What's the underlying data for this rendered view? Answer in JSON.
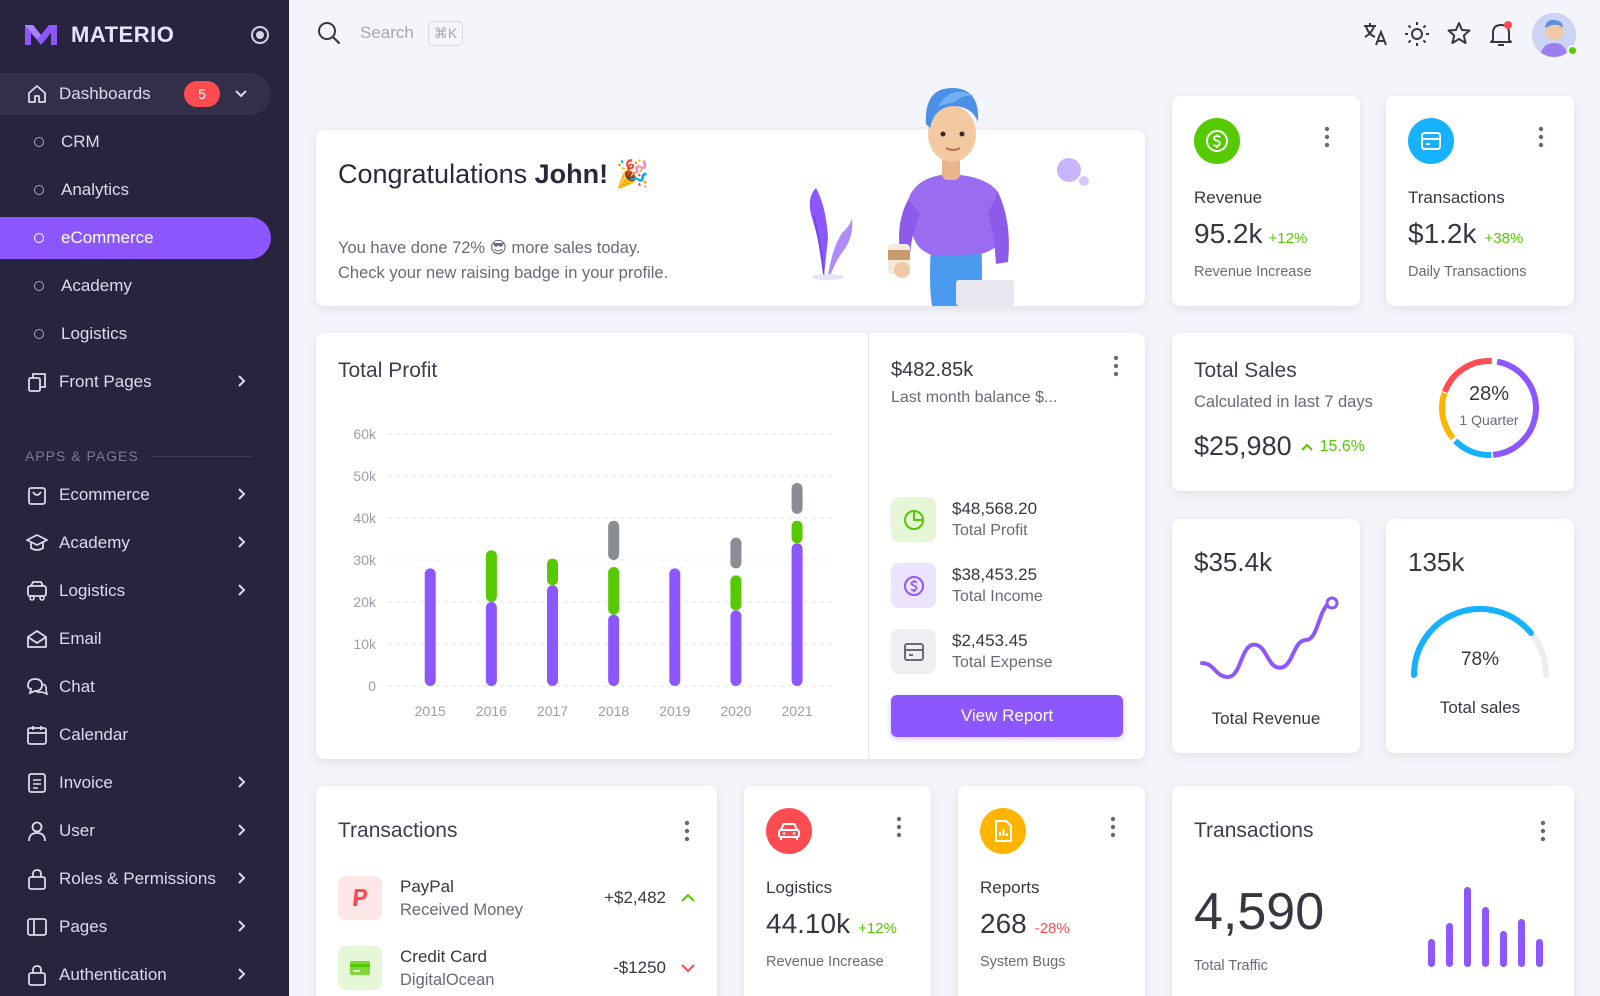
{
  "brand": {
    "name": "MATERIO",
    "color": "#8c57ff"
  },
  "sidebar": {
    "dashboards": {
      "label": "Dashboards",
      "badge": "5"
    },
    "sub_items": [
      "CRM",
      "Analytics",
      "eCommerce",
      "Academy",
      "Logistics"
    ],
    "active_item": "eCommerce",
    "front_pages": "Front Pages",
    "section_header": "APPS & PAGES",
    "items": [
      {
        "label": "Ecommerce",
        "icon": "shopping-bag-icon"
      },
      {
        "label": "Academy",
        "icon": "graduation-cap-icon"
      },
      {
        "label": "Logistics",
        "icon": "truck-icon"
      },
      {
        "label": "Email",
        "icon": "mail-icon"
      },
      {
        "label": "Chat",
        "icon": "chat-icon"
      },
      {
        "label": "Calendar",
        "icon": "calendar-icon"
      },
      {
        "label": "Invoice",
        "icon": "invoice-icon"
      },
      {
        "label": "User",
        "icon": "user-icon"
      },
      {
        "label": "Roles & Permissions",
        "icon": "lock-icon"
      },
      {
        "label": "Pages",
        "icon": "layout-icon"
      },
      {
        "label": "Authentication",
        "icon": "lock-icon"
      }
    ]
  },
  "search": {
    "placeholder": "Search",
    "shortcut": "⌘K"
  },
  "congrats": {
    "title_prefix": "Congratulations ",
    "title_name": "John!",
    "title_emoji": "🎉",
    "line1_before": "You have done 72% ",
    "line1_emoji": "😎",
    "line1_after": " more sales today.",
    "line2": "Check your new raising badge in your profile."
  },
  "revenue_card": {
    "label": "Revenue",
    "value": "95.2k",
    "change": "+12%",
    "subtitle": "Revenue Increase",
    "icon": "dollar-icon",
    "color": "#56ca00"
  },
  "transactions_card": {
    "label": "Transactions",
    "value": "$1.2k",
    "change": "+38%",
    "subtitle": "Daily Transactions",
    "icon": "credit-card-icon",
    "color": "#16b1ff"
  },
  "total_profit": {
    "title": "Total Profit",
    "balance": "$482.85k",
    "balance_sub": "Last month balance $...",
    "stats": [
      {
        "value": "$48,568.20",
        "label": "Total Profit",
        "icon": "pie-chart-icon",
        "color": "#56ca00"
      },
      {
        "value": "$38,453.25",
        "label": "Total Income",
        "icon": "dollar-icon",
        "color": "#8c57ff"
      },
      {
        "value": "$2,453.45",
        "label": "Total Expense",
        "icon": "credit-card-icon",
        "color": "#6d6777"
      }
    ],
    "button": "View Report"
  },
  "chart_data": {
    "type": "bar",
    "stacked": true,
    "categories": [
      "2015",
      "2016",
      "2017",
      "2018",
      "2019",
      "2020",
      "2021"
    ],
    "series": [
      {
        "values": [
          28,
          20,
          24,
          17,
          28,
          18,
          34
        ],
        "color": "#8c57ff"
      },
      {
        "values": [
          0,
          14,
          8,
          13,
          0,
          10,
          7
        ],
        "color": "#56ca00"
      },
      {
        "values": [
          0,
          0,
          0,
          11,
          0,
          9,
          9
        ],
        "color": "#8a8d93"
      }
    ],
    "yticks": [
      "0",
      "10k",
      "20k",
      "30k",
      "40k",
      "50k",
      "60k"
    ],
    "ylim": [
      0,
      60
    ],
    "grid": true
  },
  "total_sales": {
    "title": "Total Sales",
    "subtitle": "Calculated in last 7 days",
    "value": "$25,980",
    "change": "15.6%",
    "ring_percent": "28%",
    "ring_label": "1 Quarter"
  },
  "total_revenue_card": {
    "value": "$35.4k",
    "label": "Total Revenue",
    "trend": [
      35,
      20,
      55,
      30,
      60,
      100
    ]
  },
  "total_sales_gauge": {
    "value": "135k",
    "percent": "78%",
    "percent_value": 78,
    "label": "Total sales"
  },
  "transactions_list": {
    "title": "Transactions",
    "items": [
      {
        "name": "PayPal",
        "sub": "Received Money",
        "amount": "+$2,482",
        "direction": "up"
      },
      {
        "name": "Credit Card",
        "sub": "DigitalOcean",
        "amount": "-$1250",
        "direction": "down"
      }
    ]
  },
  "logistics_card": {
    "label": "Logistics",
    "value": "44.10k",
    "change": "+12%",
    "subtitle": "Revenue Increase",
    "icon": "car-icon",
    "color": "#ff4c51"
  },
  "reports_card": {
    "label": "Reports",
    "value": "268",
    "change": "-28%",
    "subtitle": "System Bugs",
    "icon": "report-icon",
    "color": "#ffb400"
  },
  "traffic_card": {
    "title": "Transactions",
    "value": "4,590",
    "subtitle": "Total Traffic",
    "bars": [
      35,
      55,
      100,
      75,
      45,
      60,
      35
    ]
  }
}
